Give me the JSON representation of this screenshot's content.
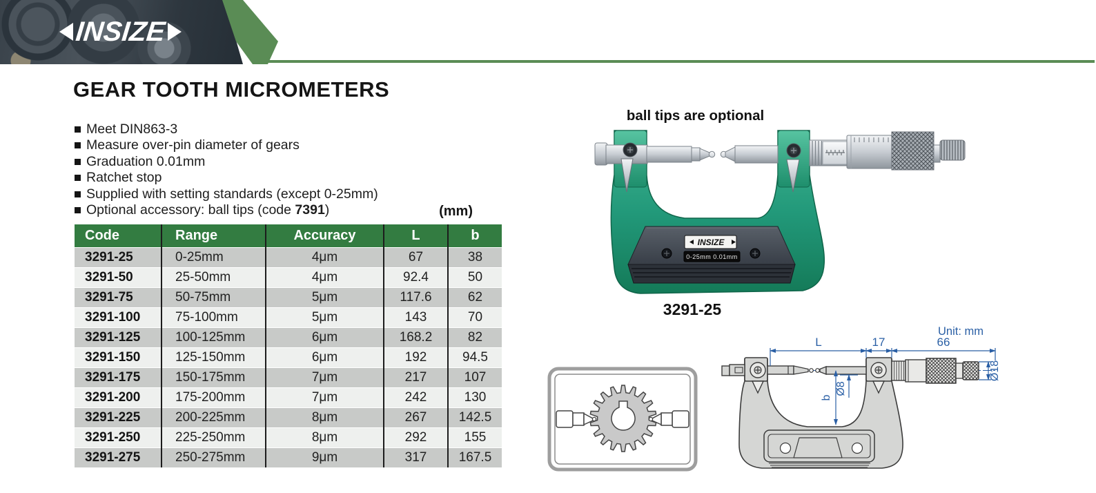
{
  "brand": {
    "logo_text": "INSIZE"
  },
  "page": {
    "title": "GEAR TOOTH MICROMETERS",
    "features": [
      [
        {
          "t": "Meet DIN863-3"
        }
      ],
      [
        {
          "t": "Measure over-pin diameter of gears"
        }
      ],
      [
        {
          "t": "Graduation 0.01mm"
        }
      ],
      [
        {
          "t": "Ratchet stop"
        }
      ],
      [
        {
          "t": "Supplied with setting standards (except 0-25mm)"
        }
      ],
      [
        {
          "t": "Optional accessory: ball tips (code "
        },
        {
          "t": "7391",
          "bold": true
        },
        {
          "t": ")"
        }
      ]
    ]
  },
  "table": {
    "unit_label": "(mm)",
    "columns": [
      "Code",
      "Range",
      "Accuracy",
      "L",
      "b"
    ],
    "rows": [
      [
        "3291-25",
        "0-25mm",
        "4μm",
        "67",
        "38"
      ],
      [
        "3291-50",
        "25-50mm",
        "4μm",
        "92.4",
        "50"
      ],
      [
        "3291-75",
        "50-75mm",
        "5μm",
        "117.6",
        "62"
      ],
      [
        "3291-100",
        "75-100mm",
        "5μm",
        "143",
        "70"
      ],
      [
        "3291-125",
        "100-125mm",
        "6μm",
        "168.2",
        "82"
      ],
      [
        "3291-150",
        "125-150mm",
        "6μm",
        "192",
        "94.5"
      ],
      [
        "3291-175",
        "150-175mm",
        "7μm",
        "217",
        "107"
      ],
      [
        "3291-200",
        "175-200mm",
        "7μm",
        "242",
        "130"
      ],
      [
        "3291-225",
        "200-225mm",
        "8μm",
        "267",
        "142.5"
      ],
      [
        "3291-250",
        "225-250mm",
        "8μm",
        "292",
        "155"
      ],
      [
        "3291-275",
        "250-275mm",
        "9μm",
        "317",
        "167.5"
      ]
    ]
  },
  "product": {
    "note": "ball tips are optional",
    "model": "3291-25",
    "plate_brand": "INSIZE",
    "plate_spec": "0-25mm 0.01mm"
  },
  "drawing": {
    "unit": "Unit: mm",
    "labels": {
      "L": "L",
      "len17": "17",
      "len66": "66",
      "dia8": "Ø8",
      "b": "b",
      "dia18": "Ø18"
    }
  },
  "colors": {
    "header_green": "#337c41",
    "accent_green": "#5a8c55",
    "micrometer_green": "#2ca57e",
    "dim_blue": "#2a5fa5"
  }
}
